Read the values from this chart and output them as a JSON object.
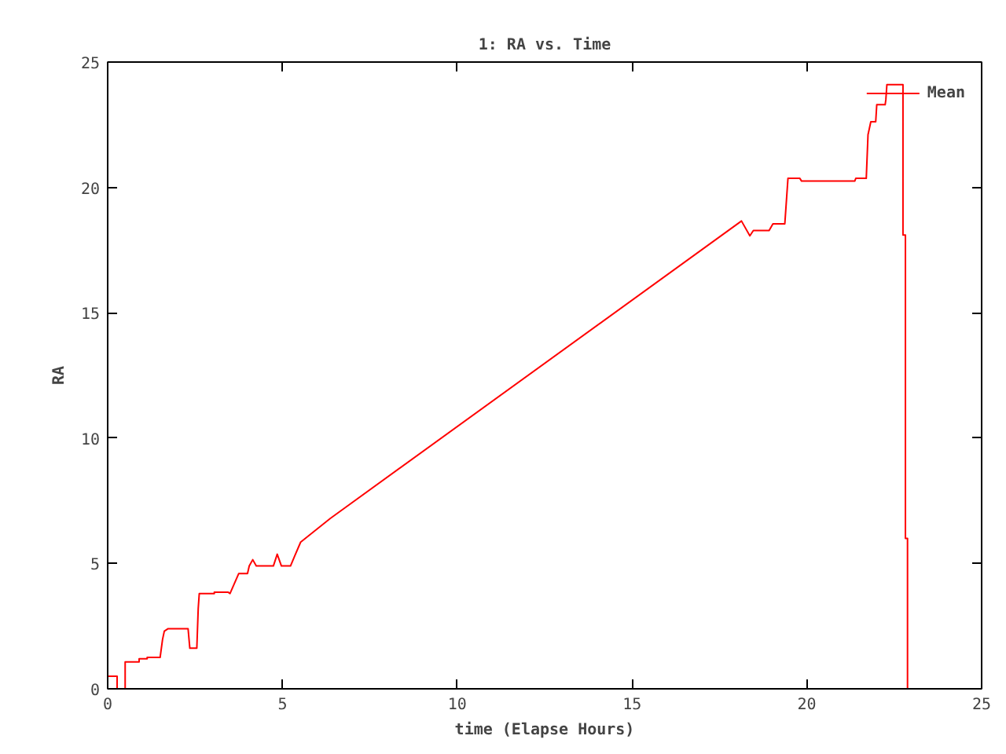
{
  "chart_data": {
    "type": "line",
    "title": "1: RA vs. Time",
    "xlabel": "time (Elapse Hours)",
    "ylabel": "RA",
    "xlim": [
      0,
      25
    ],
    "ylim": [
      0,
      25
    ],
    "xticks": [
      0,
      5,
      10,
      15,
      20,
      25
    ],
    "yticks": [
      0,
      5,
      10,
      15,
      20,
      25
    ],
    "grid": false,
    "legend": "top right",
    "line_style": "solid",
    "marker": "none",
    "series": [
      {
        "name": "Mean",
        "color": "#ff0000",
        "x": [
          0,
          0.27,
          0.27,
          0.5,
          0.5,
          0.9,
          0.9,
          1.13,
          1.13,
          1.5,
          1.57,
          1.62,
          1.73,
          2.3,
          2.35,
          2.55,
          2.59,
          2.62,
          3.05,
          3.05,
          3.45,
          3.5,
          3.75,
          4.0,
          4.05,
          4.15,
          4.25,
          4.74,
          4.85,
          4.97,
          5.23,
          5.35,
          5.52,
          6.37,
          18.13,
          18.37,
          18.47,
          18.92,
          19.03,
          19.37,
          19.46,
          19.8,
          19.85,
          21.37,
          21.4,
          21.7,
          21.75,
          21.83,
          21.97,
          22.0,
          22.24,
          22.26,
          22.29,
          22.75,
          22.75,
          22.82,
          22.82,
          22.88,
          22.88
        ],
        "values": [
          0.5,
          0.5,
          0,
          0,
          1.07,
          1.07,
          1.2,
          1.2,
          1.25,
          1.25,
          1.97,
          2.3,
          2.4,
          2.4,
          1.62,
          1.62,
          3.2,
          3.8,
          3.8,
          3.85,
          3.85,
          3.8,
          4.6,
          4.6,
          4.9,
          5.15,
          4.9,
          4.9,
          5.37,
          4.9,
          4.9,
          5.3,
          5.85,
          6.8,
          18.66,
          18.07,
          18.28,
          18.28,
          18.55,
          18.55,
          20.36,
          20.36,
          20.25,
          20.25,
          20.36,
          20.36,
          22.1,
          22.62,
          22.62,
          23.3,
          23.3,
          23.5,
          24.1,
          24.1,
          18.1,
          18.1,
          6.0,
          6.0,
          0
        ]
      }
    ]
  }
}
